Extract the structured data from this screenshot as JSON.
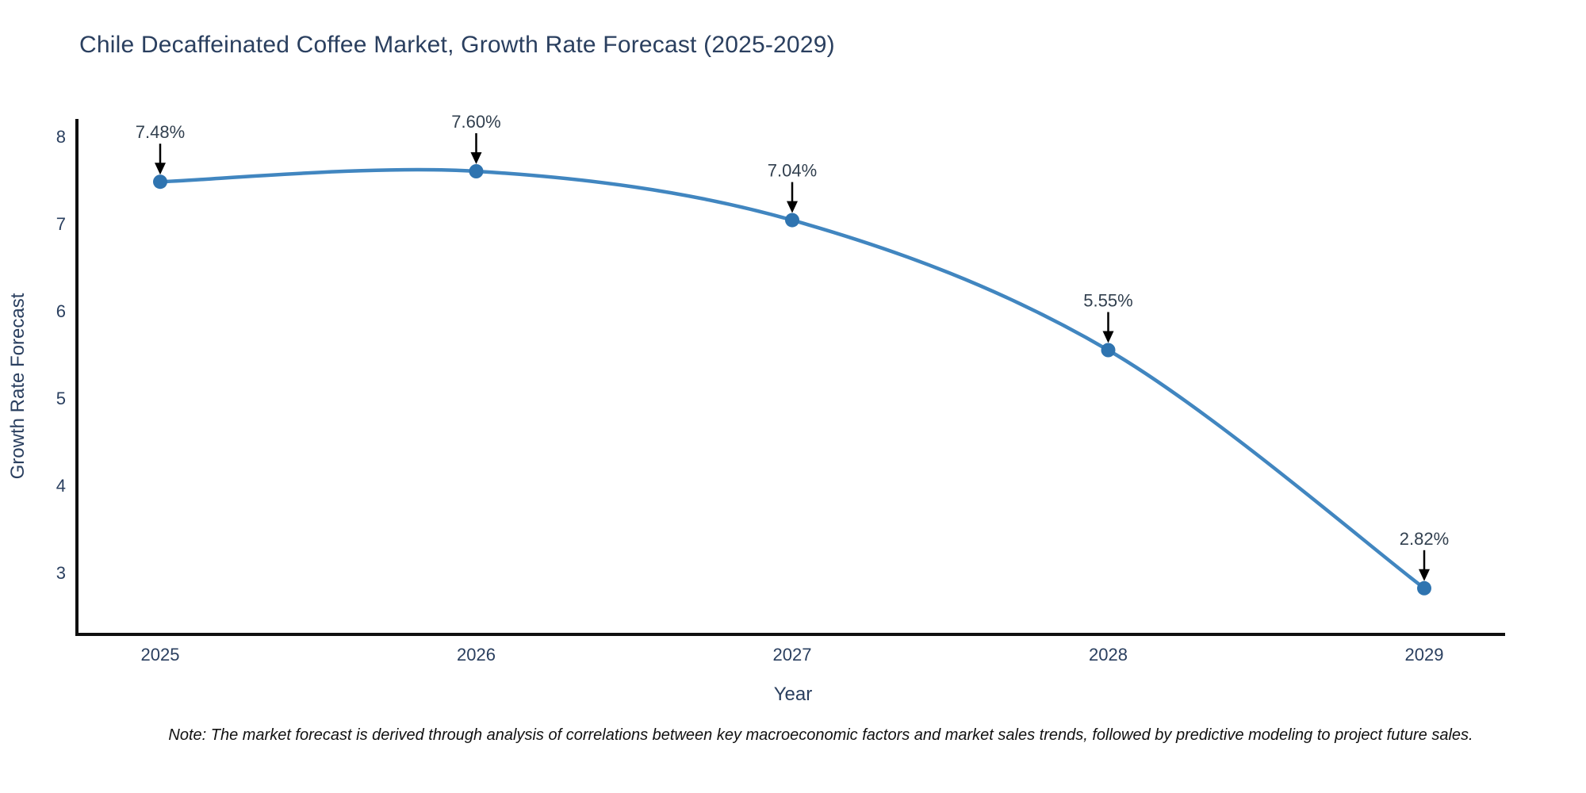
{
  "title": "Chile Decaffeinated Coffee Market, Growth Rate Forecast (2025-2029)",
  "note": "Note: The market forecast is derived through analysis of correlations between key macroeconomic factors and market sales trends, followed by predictive modeling to project future sales.",
  "chart_data": {
    "type": "line",
    "title": "Chile Decaffeinated Coffee Market, Growth Rate Forecast (2025-2029)",
    "x": [
      2025,
      2026,
      2027,
      2028,
      2029
    ],
    "x_tick_labels": [
      "2025",
      "2026",
      "2027",
      "2028",
      "2029"
    ],
    "series": [
      {
        "name": "Growth Rate Forecast",
        "values": [
          7.48,
          7.6,
          7.04,
          5.55,
          2.82
        ],
        "point_labels": [
          "7.48%",
          "7.60%",
          "7.04%",
          "5.55%",
          "2.82%"
        ]
      }
    ],
    "xlabel": "Year",
    "ylabel": "Growth Rate Forecast",
    "ylim": [
      2.45,
      8.2
    ],
    "yticks": [
      3,
      4,
      5,
      6,
      7,
      8
    ],
    "grid": false,
    "legend": "none",
    "colors": {
      "line": "#4186c0",
      "marker": "#2f74b0",
      "axis": "#0f0f0f",
      "tick_text": "#2a3f5f",
      "annotation_text": "#32404f",
      "annotation_arrow": "#000000",
      "title_text": "#2a3f5f"
    }
  }
}
